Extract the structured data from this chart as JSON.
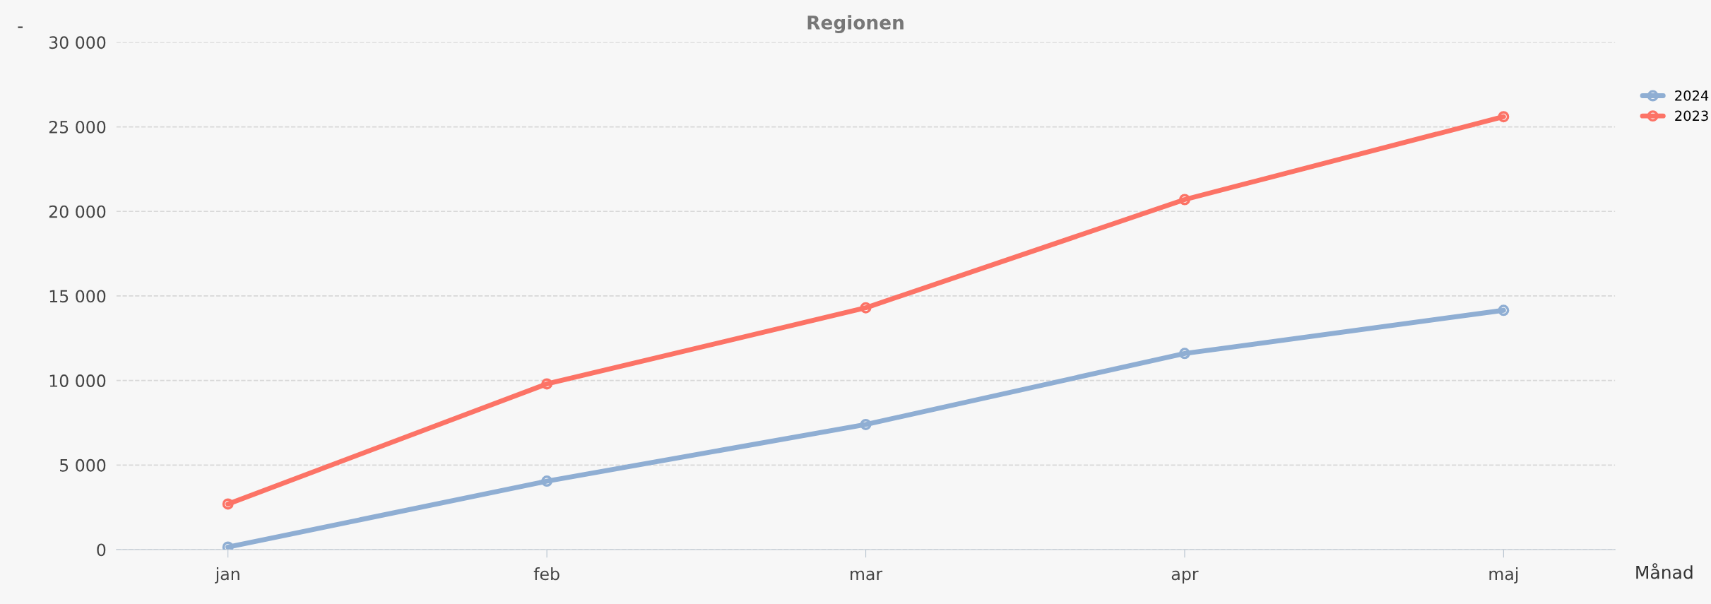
{
  "chart_data": {
    "type": "line",
    "title": "Regionen",
    "ylabel": "-",
    "xlabel": "Månad",
    "categories": [
      "jan",
      "feb",
      "mar",
      "apr",
      "maj"
    ],
    "series": [
      {
        "name": "2024",
        "color": "#8faed3",
        "values": [
          150,
          4050,
          7400,
          11600,
          14150
        ]
      },
      {
        "name": "2023",
        "color": "#fc7366",
        "values": [
          2700,
          9800,
          14300,
          20700,
          25600
        ]
      }
    ],
    "ylim": [
      0,
      30000
    ],
    "yticks": [
      0,
      {
        "value": 5000,
        "label": "5 000"
      },
      {
        "value": 10000,
        "label": "10 000"
      },
      {
        "value": 15000,
        "label": "15 000"
      },
      {
        "value": 20000,
        "label": "20 000"
      },
      {
        "value": 25000,
        "label": "25 000"
      },
      {
        "value": 30000,
        "label": "30 000"
      }
    ],
    "grid": "y",
    "legend": "top right",
    "marker": "circle",
    "line_style": "solid"
  }
}
